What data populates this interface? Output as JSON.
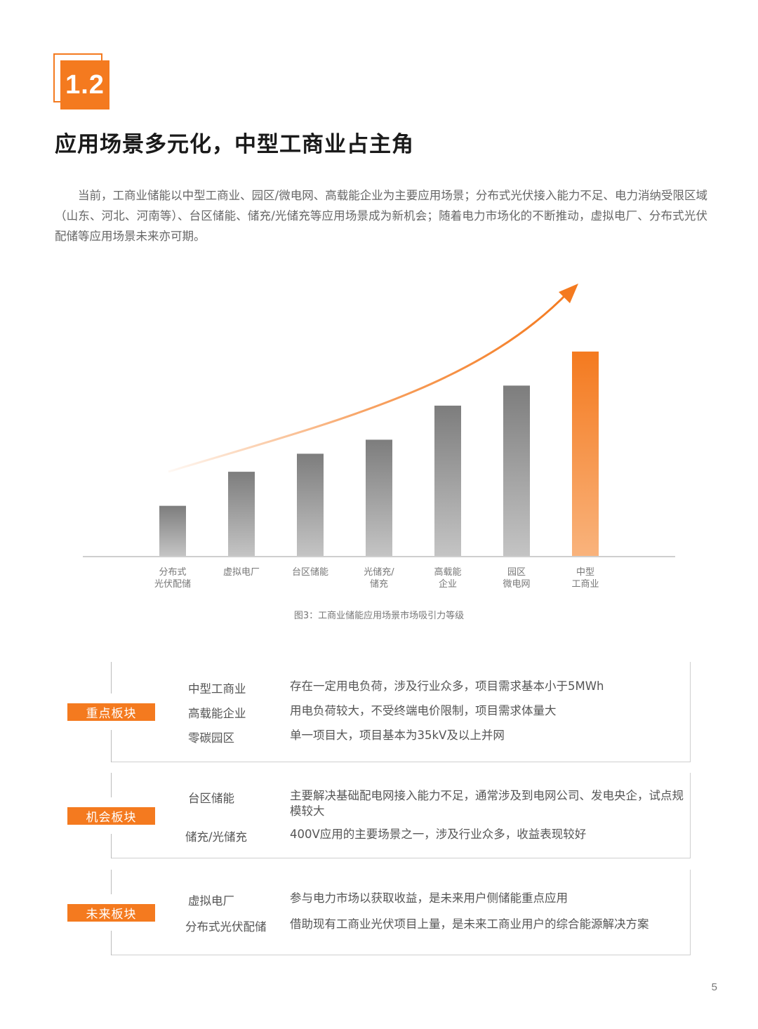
{
  "section": {
    "number": "1.2"
  },
  "title": "应用场景多元化，中型工商业占主角",
  "intro": "当前，工商业储能以中型工商业、园区/微电网、高载能企业为主要应用场景；分布式光伏接入能力不足、电力消纳受限区域（山东、河北、河南等）、台区储能、储充/光储充等应用场景成为新机会；随着电力市场化的不断推动，虚拟电厂、分布式光伏配储等应用场景未来亦可期。",
  "chart_data": {
    "type": "bar",
    "categories": [
      [
        "分布式",
        "光伏配储"
      ],
      [
        "虚拟电厂"
      ],
      [
        "台区储能"
      ],
      [
        "光储充/",
        "储充"
      ],
      [
        "高载能",
        "企业"
      ],
      [
        "园区",
        "微电网"
      ],
      [
        "中型",
        "工商业"
      ]
    ],
    "values": [
      25,
      42,
      51,
      58,
      75,
      85,
      102
    ],
    "ylim": [
      0,
      110
    ],
    "highlight_index": 6,
    "colors": {
      "bar": "#8c8c8c",
      "highlight": "#f47a1f",
      "arrow": "#f47a1f"
    },
    "caption": "图3：工商业储能应用场景市场吸引力等级"
  },
  "segments": [
    {
      "tag": "重点板块",
      "rows": [
        {
          "name": "中型工商业",
          "desc": "存在一定用电负荷，涉及行业众多，项目需求基本小于5MWh"
        },
        {
          "name": "高载能企业",
          "desc": "用电负荷较大，不受终端电价限制，项目需求体量大"
        },
        {
          "name": "零碳园区",
          "desc": "单一项目大，项目基本为35kV及以上并网"
        }
      ]
    },
    {
      "tag": "机会板块",
      "rows": [
        {
          "name": "台区储能",
          "desc": "主要解决基础配电网接入能力不足，通常涉及到电网公司、发电央企，试点规模较大"
        },
        {
          "name": "储充/光储充",
          "desc": "400V应用的主要场景之一，涉及行业众多，收益表现较好"
        }
      ]
    },
    {
      "tag": "未来板块",
      "rows": [
        {
          "name": "虚拟电厂",
          "desc": "参与电力市场以获取收益，是未来用户侧储能重点应用"
        },
        {
          "name": "分布式光伏配储",
          "desc": "借助现有工商业光伏项目上量，是未来工商业用户的综合能源解决方案"
        }
      ]
    }
  ],
  "page_number": "5"
}
